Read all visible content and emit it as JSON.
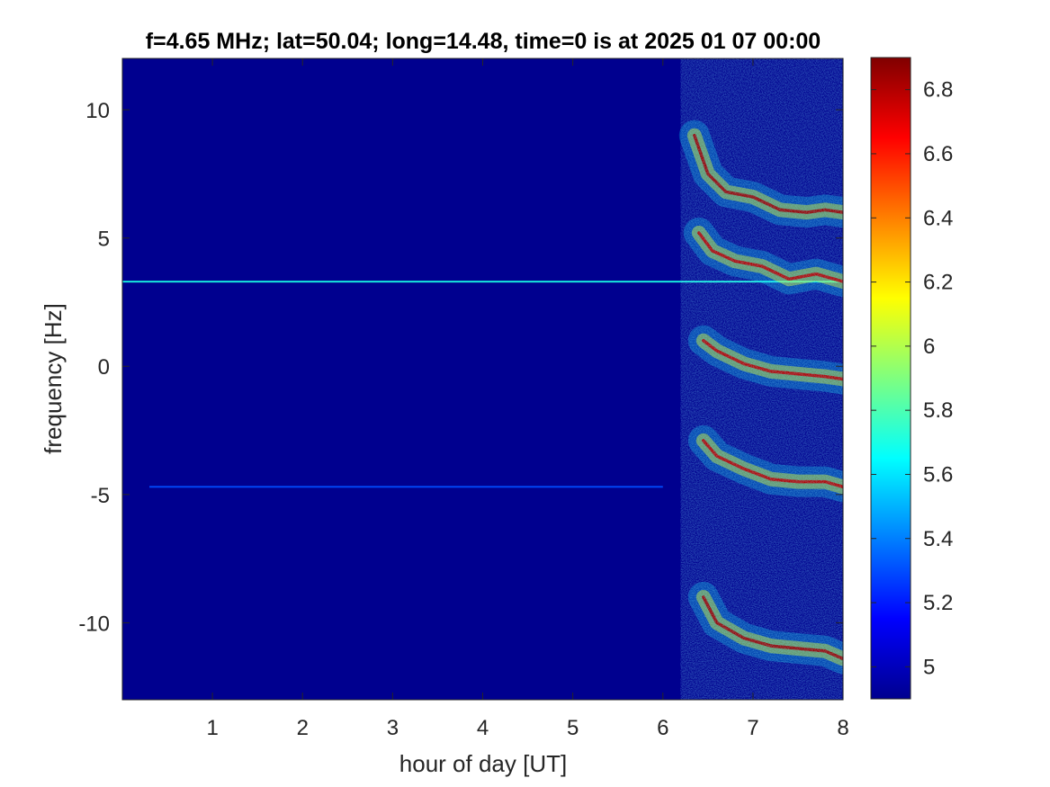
{
  "chart_data": {
    "type": "heatmap",
    "title": "f=4.65 MHz;  lat=50.04; long=14.48, time=0 is at 2025 01 07 00:00",
    "xlabel": "hour of day [UT]",
    "ylabel": "frequency [Hz]",
    "xlim": [
      0,
      8
    ],
    "ylim": [
      -13,
      12
    ],
    "x_ticks": [
      1,
      2,
      3,
      4,
      5,
      6,
      7,
      8
    ],
    "y_ticks": [
      -10,
      -5,
      0,
      5,
      10
    ],
    "colorbar": {
      "colormap": "jet",
      "clim": [
        4.9,
        6.9
      ],
      "ticks": [
        5,
        5.2,
        5.4,
        5.6,
        5.8,
        6,
        6.2,
        6.4,
        6.6,
        6.8
      ]
    },
    "background_value": 4.95,
    "steady_lines": [
      {
        "frequency": 3.3,
        "x_start": 0,
        "x_end": 8,
        "value": 5.7
      },
      {
        "frequency": -4.7,
        "x_start": 0.3,
        "x_end": 6.0,
        "value": 5.3
      }
    ],
    "traces": [
      {
        "points": [
          [
            6.35,
            9.0
          ],
          [
            6.5,
            7.5
          ],
          [
            6.7,
            6.8
          ],
          [
            7.0,
            6.6
          ],
          [
            7.3,
            6.1
          ],
          [
            7.6,
            6.0
          ],
          [
            7.8,
            6.1
          ],
          [
            8.0,
            6.0
          ]
        ],
        "value": 6.85
      },
      {
        "points": [
          [
            6.4,
            5.2
          ],
          [
            6.55,
            4.5
          ],
          [
            6.8,
            4.1
          ],
          [
            7.1,
            3.9
          ],
          [
            7.4,
            3.4
          ],
          [
            7.7,
            3.6
          ],
          [
            8.0,
            3.3
          ]
        ],
        "value": 6.8
      },
      {
        "points": [
          [
            6.45,
            1.0
          ],
          [
            6.6,
            0.6
          ],
          [
            6.9,
            0.1
          ],
          [
            7.2,
            -0.2
          ],
          [
            7.5,
            -0.3
          ],
          [
            7.8,
            -0.4
          ],
          [
            8.0,
            -0.5
          ]
        ],
        "value": 6.8
      },
      {
        "points": [
          [
            6.45,
            -2.9
          ],
          [
            6.6,
            -3.5
          ],
          [
            6.9,
            -4.0
          ],
          [
            7.2,
            -4.4
          ],
          [
            7.5,
            -4.5
          ],
          [
            7.8,
            -4.5
          ],
          [
            8.0,
            -4.7
          ]
        ],
        "value": 6.8
      },
      {
        "points": [
          [
            6.45,
            -9.0
          ],
          [
            6.6,
            -10.0
          ],
          [
            6.9,
            -10.6
          ],
          [
            7.2,
            -10.9
          ],
          [
            7.5,
            -11.0
          ],
          [
            7.8,
            -11.1
          ],
          [
            8.0,
            -11.4
          ]
        ],
        "value": 6.85
      }
    ]
  }
}
